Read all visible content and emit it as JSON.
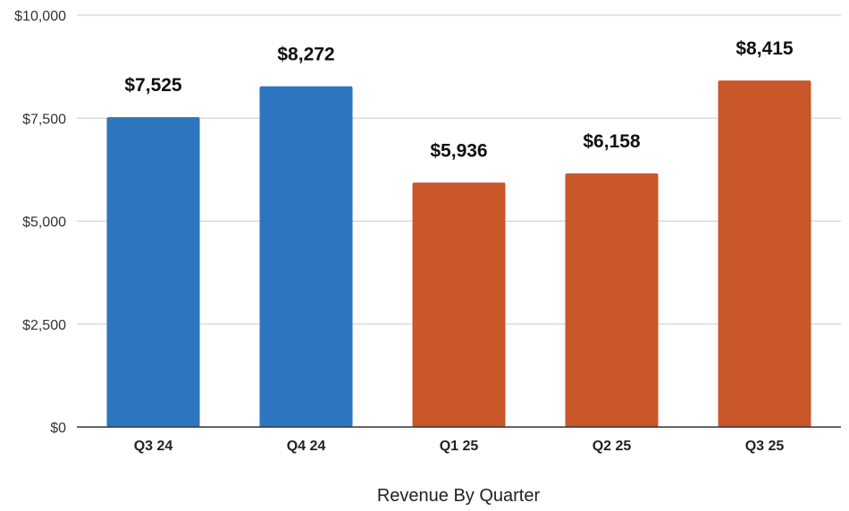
{
  "chart_data": {
    "type": "bar",
    "categories": [
      "Q3 24",
      "Q4 24",
      "Q1 25",
      "Q2 25",
      "Q3 25"
    ],
    "values": [
      7525,
      8272,
      5936,
      6158,
      8415
    ],
    "data_labels": [
      "$7,525",
      "$8,272",
      "$5,936",
      "$6,158",
      "$8,415"
    ],
    "bar_colors": [
      "#2E75BF",
      "#2E75BF",
      "#C9572A",
      "#C9572A",
      "#C9572A"
    ],
    "title": "",
    "xlabel": "Revenue By Quarter",
    "ylabel": "",
    "ylim": [
      0,
      10000
    ],
    "yticks": [
      0,
      2500,
      5000,
      7500,
      10000
    ],
    "ytick_labels": [
      "$0",
      "$2,500",
      "$5,000",
      "$7,500",
      "$10,000"
    ],
    "grid": true,
    "legend": "none"
  }
}
